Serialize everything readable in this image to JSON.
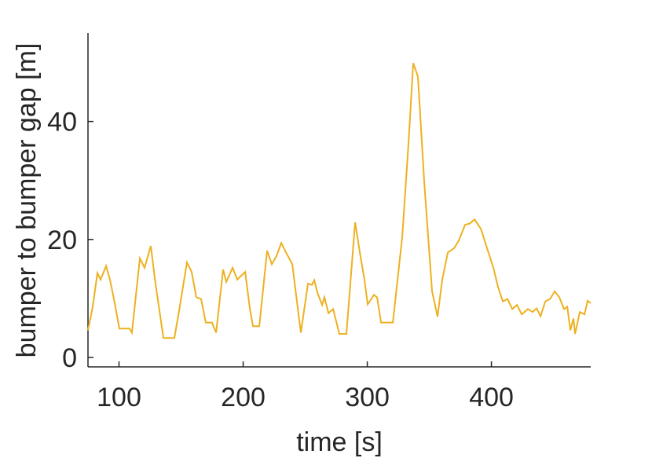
{
  "chart_data": {
    "type": "line",
    "x_label": "time [s]",
    "y_label": "bumper to bumper gap [m]",
    "xlim": [
      75,
      480
    ],
    "ylim": [
      -1.6,
      55
    ],
    "xticks": [
      100,
      200,
      300,
      400
    ],
    "yticks": [
      0,
      20,
      40
    ],
    "x": [
      75,
      78.8,
      82.6,
      85.1,
      89.6,
      92.7,
      95.9,
      100.3,
      108.5,
      110.4,
      116.8,
      120.6,
      125.6,
      129.4,
      135.8,
      144.6,
      148.4,
      154.7,
      158.5,
      162.3,
      166.1,
      169.9,
      174.9,
      178.2,
      183.9,
      186.4,
      191.5,
      195.3,
      201.6,
      205.4,
      207.9,
      213,
      219.3,
      223.1,
      226.9,
      230.7,
      234.5,
      239.6,
      244.6,
      246.5,
      252.2,
      255.4,
      257.3,
      259.8,
      263.6,
      265.5,
      268.7,
      272.5,
      277.5,
      283.2,
      290.2,
      294,
      297.8,
      300.3,
      305.4,
      307.9,
      311.1,
      320.6,
      328.2,
      333.2,
      337,
      340.8,
      345.9,
      352.2,
      356.6,
      360.4,
      364.9,
      369.9,
      373.7,
      378.8,
      382.6,
      386.4,
      391.5,
      396.5,
      401.6,
      405.4,
      409.2,
      413,
      416.8,
      420.6,
      424.4,
      429.4,
      433.2,
      436.4,
      439.6,
      443.4,
      447.2,
      451,
      454.7,
      458.5,
      461.1,
      463.6,
      466.1,
      467.4,
      471.2,
      475,
      477.5,
      480
    ],
    "series": [
      {
        "color": "#EDB120",
        "values": [
          4.6,
          8.6,
          14.3,
          13.2,
          15.5,
          13.2,
          9.9,
          4.9,
          4.9,
          4.2,
          16.8,
          15.2,
          18.9,
          12.5,
          3.3,
          3.3,
          7.9,
          16.1,
          14.5,
          10.2,
          9.9,
          5.9,
          5.9,
          4.2,
          14.9,
          12.8,
          15.2,
          13.2,
          14.5,
          8.3,
          5.3,
          5.3,
          18.1,
          15.8,
          17.2,
          19.4,
          17.8,
          15.8,
          7.3,
          4.2,
          12.5,
          12.3,
          13.1,
          11,
          8.9,
          10.2,
          7.5,
          8.2,
          4,
          4,
          22.9,
          17.8,
          13.1,
          9,
          10.6,
          10.2,
          5.9,
          5.9,
          20.5,
          36.3,
          49.9,
          47.6,
          29.7,
          11.2,
          6.9,
          13.2,
          17.8,
          18.5,
          19.8,
          22.5,
          22.7,
          23.4,
          21.8,
          18.5,
          15.2,
          11.9,
          9.5,
          9.9,
          8.2,
          8.9,
          7.3,
          8.2,
          7.7,
          8.3,
          7,
          9.5,
          9.9,
          11.2,
          10.2,
          8.2,
          8.6,
          4.6,
          6.6,
          4,
          7.7,
          7.3,
          9.6,
          9.2
        ]
      }
    ]
  }
}
